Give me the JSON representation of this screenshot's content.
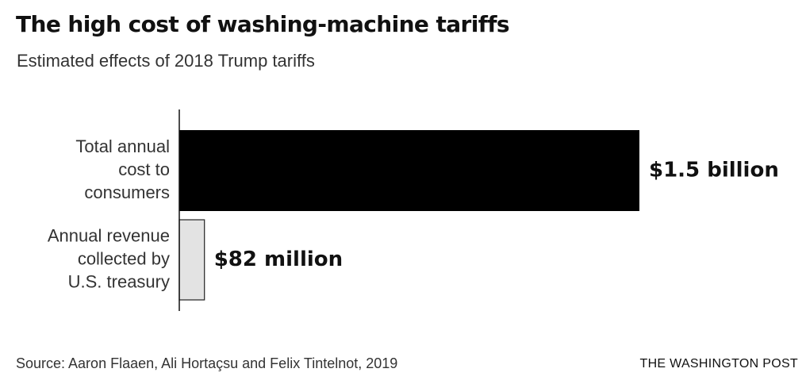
{
  "header": {
    "title": "The high cost of washing-machine tariffs",
    "subtitle": "Estimated effects of 2018 Trump tariffs"
  },
  "footer": {
    "source": "Source: Aaron Flaaen, Ali Hortaçsu and Felix Tintelnot, 2019",
    "credit": "THE WASHINGTON POST"
  },
  "chart_data": {
    "type": "bar",
    "orientation": "horizontal",
    "title": "The high cost of washing-machine tariffs",
    "subtitle": "Estimated effects of 2018 Trump tariffs",
    "unit": "USD",
    "categories": [
      [
        "Total annual",
        "cost to",
        "consumers"
      ],
      [
        "Annual revenue",
        "collected by",
        "U.S. treasury"
      ]
    ],
    "values": [
      1500000000,
      82000000
    ],
    "value_labels": [
      "$1.5 billion",
      "$82 million"
    ],
    "colors": [
      "#000000",
      "#e3e3e3"
    ],
    "xlim": [
      0,
      1500000000
    ],
    "grid": false,
    "legend": "none"
  }
}
